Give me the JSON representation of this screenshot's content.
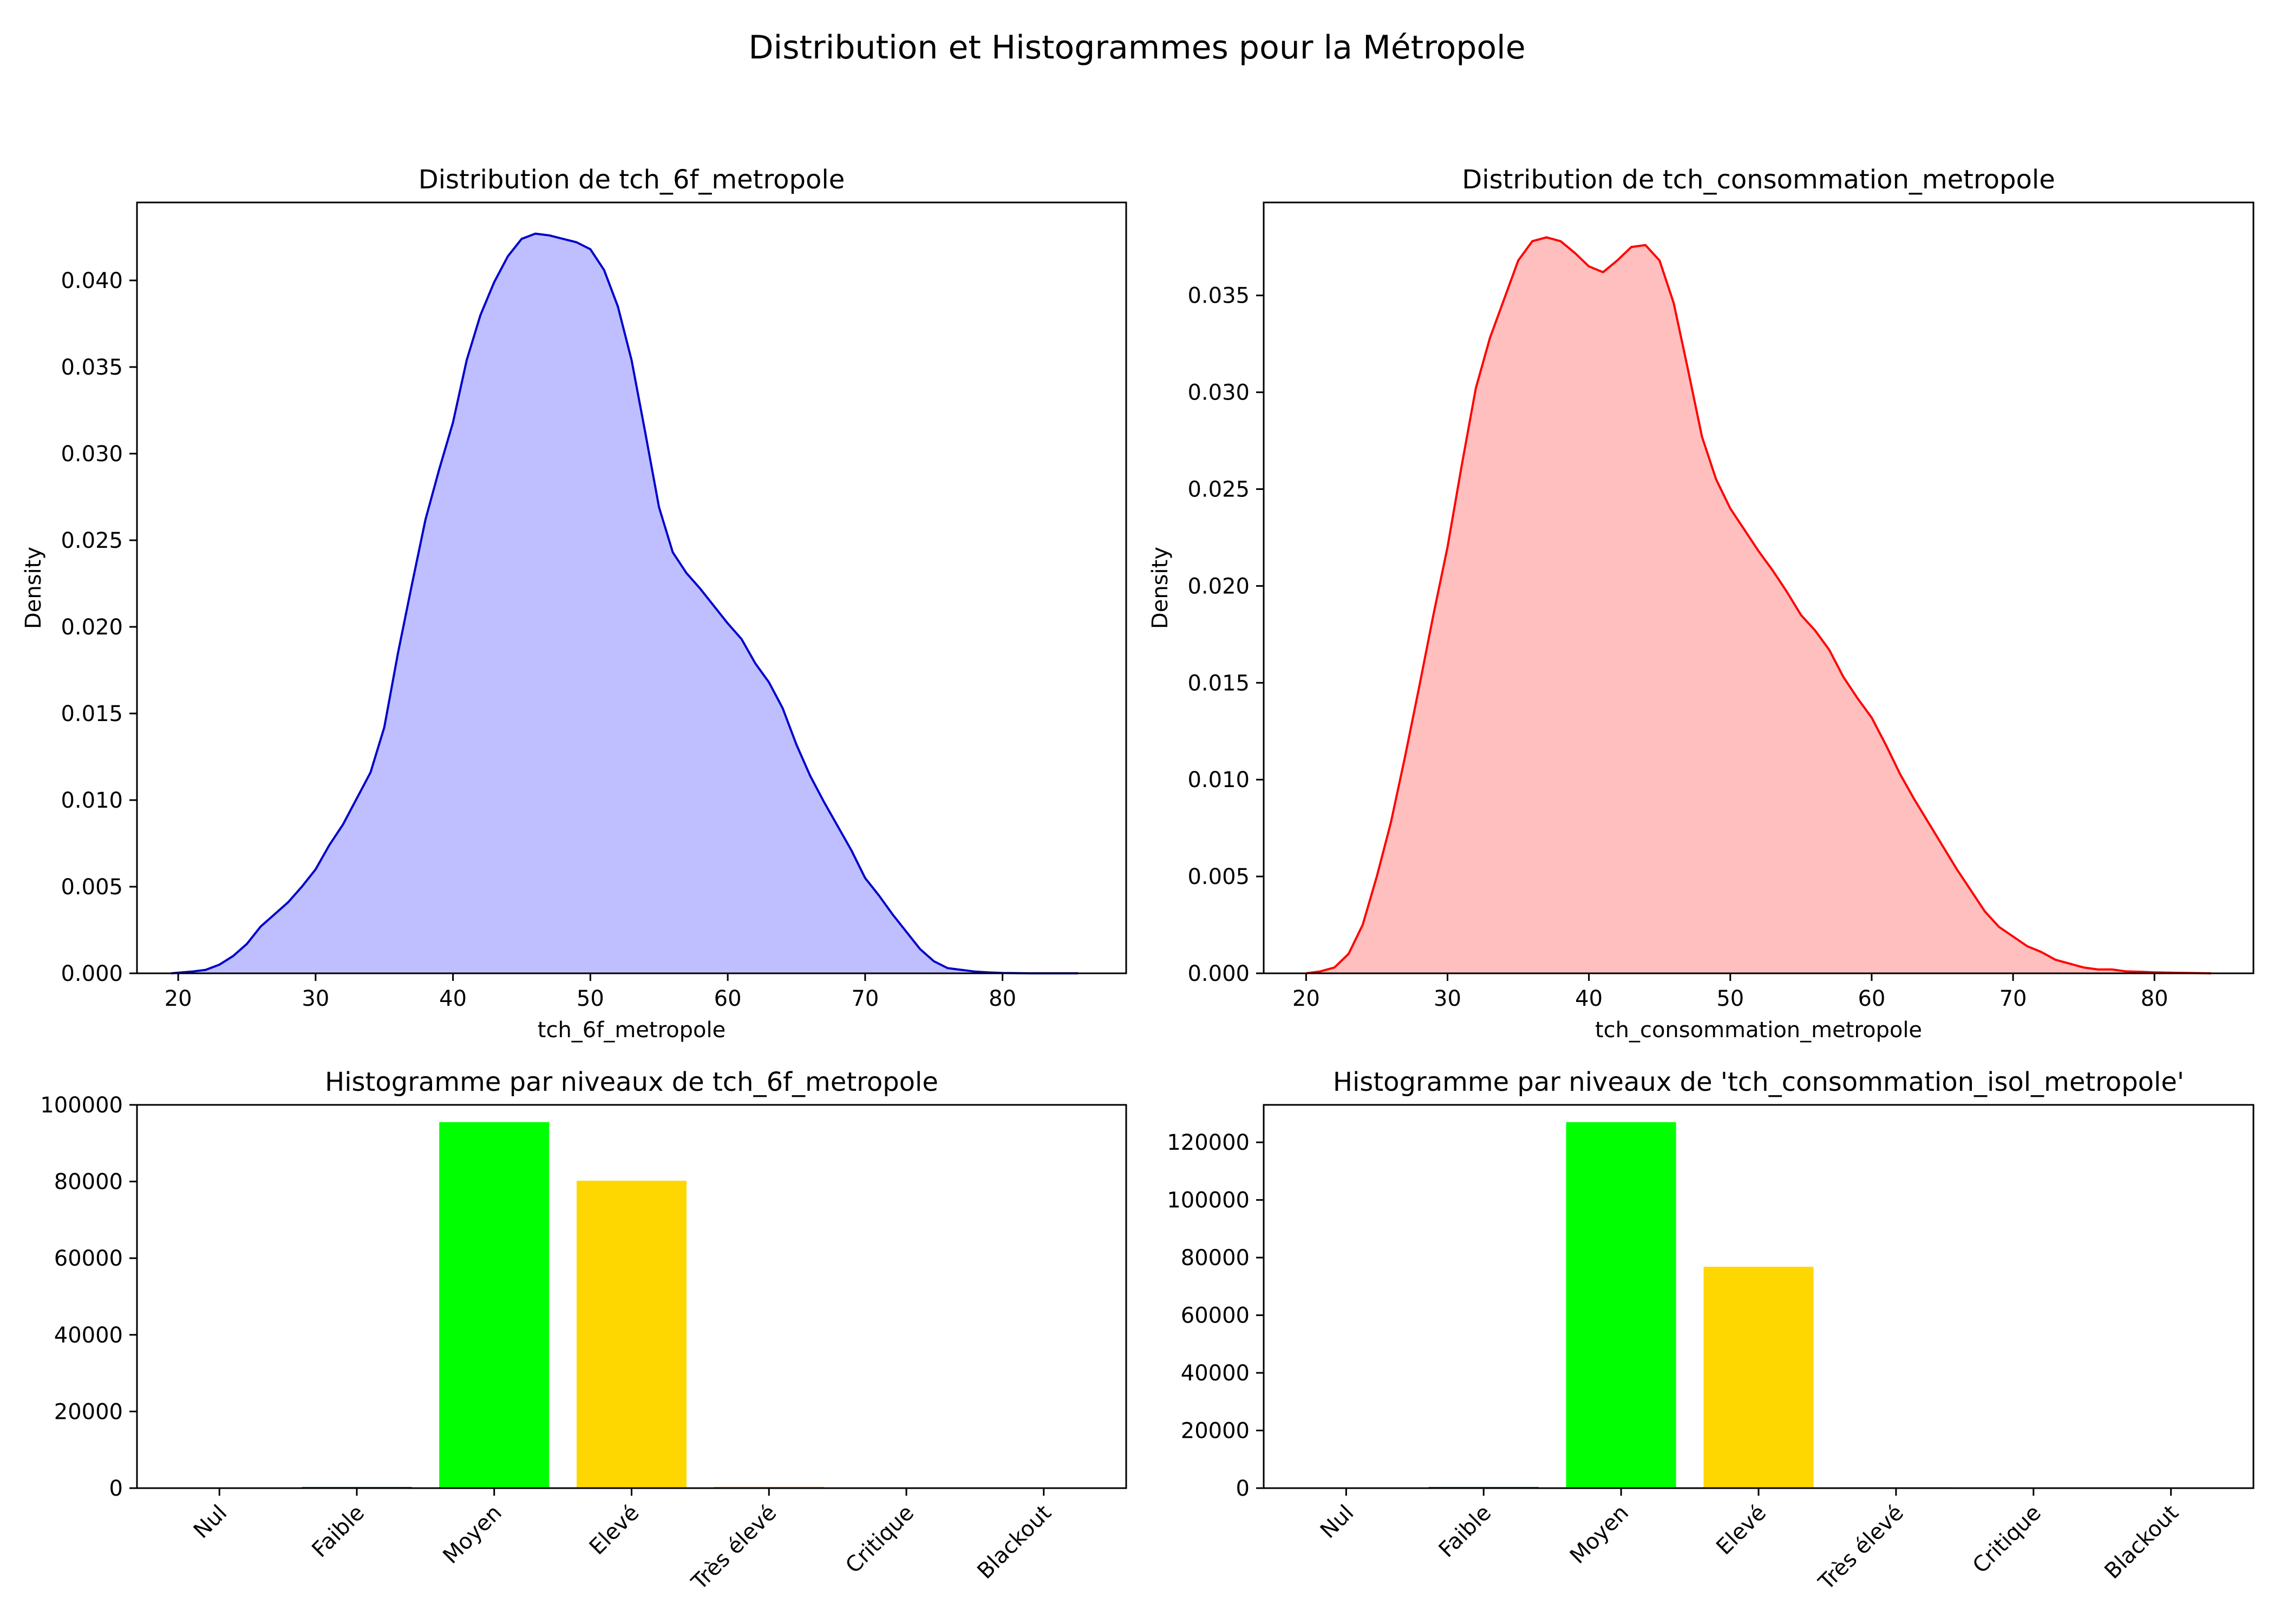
{
  "figure": {
    "title": "Distribution et Histogrammes pour la Métropole"
  },
  "chart_data": [
    {
      "type": "area",
      "title": "Distribution de tch_6f_metropole",
      "xlabel": "tch_6f_metropole",
      "ylabel": "Density",
      "xlim": [
        17,
        89
      ],
      "ylim": [
        0,
        0.0445
      ],
      "xticks": [
        20,
        30,
        40,
        50,
        60,
        70,
        80
      ],
      "yticks": [
        0,
        0.005,
        0.01,
        0.015,
        0.02,
        0.025,
        0.03,
        0.035,
        0.04
      ],
      "ytick_decimals": 3,
      "line_color": "#0000cc",
      "fill_color": "#bfbfff",
      "x": [
        19.5,
        21,
        22,
        23,
        24,
        25,
        26,
        27,
        28,
        29,
        30,
        31,
        32,
        33,
        34,
        35,
        36,
        37,
        38,
        39,
        40,
        41,
        42,
        43,
        44,
        45,
        46,
        47,
        48,
        49,
        50,
        51,
        52,
        53,
        54,
        55,
        56,
        57,
        58,
        59,
        60,
        61,
        62,
        63,
        64,
        65,
        66,
        67,
        68,
        69,
        70,
        71,
        72,
        73,
        74,
        75,
        76,
        77,
        78,
        79,
        80,
        82,
        85.5
      ],
      "y": [
        0.0,
        0.0001,
        0.0002,
        0.0005,
        0.001,
        0.0017,
        0.0027,
        0.0034,
        0.0041,
        0.005,
        0.006,
        0.0074,
        0.0086,
        0.0101,
        0.0116,
        0.0142,
        0.0185,
        0.0224,
        0.0262,
        0.0291,
        0.0318,
        0.0354,
        0.038,
        0.0399,
        0.0414,
        0.0424,
        0.0427,
        0.0426,
        0.0424,
        0.0422,
        0.0418,
        0.0406,
        0.0385,
        0.0354,
        0.0312,
        0.0269,
        0.0243,
        0.0231,
        0.0222,
        0.0212,
        0.0202,
        0.0193,
        0.0179,
        0.0168,
        0.0153,
        0.0132,
        0.0114,
        0.0099,
        0.0085,
        0.0071,
        0.0055,
        0.0045,
        0.0034,
        0.0024,
        0.0014,
        0.0007,
        0.0003,
        0.0002,
        0.0001,
        5e-05,
        2e-05,
        0.0,
        0.0
      ]
    },
    {
      "type": "area",
      "title": "Distribution de tch_consommation_metropole",
      "xlabel": "tch_consommation_metropole",
      "ylabel": "Density",
      "xlim": [
        17,
        87
      ],
      "ylim": [
        0,
        0.0398
      ],
      "xticks": [
        20,
        30,
        40,
        50,
        60,
        70,
        80
      ],
      "yticks": [
        0,
        0.005,
        0.01,
        0.015,
        0.02,
        0.025,
        0.03,
        0.035
      ],
      "ytick_decimals": 3,
      "line_color": "#ff0000",
      "fill_color": "#ffbfbf",
      "x": [
        20,
        21,
        22,
        23,
        24,
        25,
        26,
        27,
        28,
        29,
        30,
        31,
        32,
        33,
        34,
        35,
        36,
        37,
        38,
        39,
        40,
        41,
        42,
        43,
        44,
        45,
        46,
        47,
        48,
        49,
        50,
        51,
        52,
        53,
        54,
        55,
        56,
        57,
        58,
        59,
        60,
        61,
        62,
        63,
        64,
        65,
        66,
        67,
        68,
        69,
        70,
        71,
        72,
        73,
        74,
        75,
        76,
        77,
        78,
        79,
        80,
        82,
        84
      ],
      "y": [
        0.0,
        0.0001,
        0.0003,
        0.001,
        0.0025,
        0.005,
        0.0078,
        0.0112,
        0.0148,
        0.0185,
        0.022,
        0.0262,
        0.0302,
        0.0328,
        0.0348,
        0.0368,
        0.0378,
        0.038,
        0.0378,
        0.0372,
        0.0365,
        0.0362,
        0.0368,
        0.0375,
        0.0376,
        0.0368,
        0.0346,
        0.0312,
        0.0277,
        0.0255,
        0.024,
        0.0229,
        0.0218,
        0.0208,
        0.0197,
        0.0185,
        0.0177,
        0.0167,
        0.0153,
        0.0142,
        0.0132,
        0.0118,
        0.0103,
        0.009,
        0.0078,
        0.0066,
        0.0054,
        0.0043,
        0.0032,
        0.0024,
        0.0019,
        0.0014,
        0.0011,
        0.0007,
        0.0005,
        0.0003,
        0.0002,
        0.0002,
        0.0001,
        8e-05,
        5e-05,
        2e-05,
        0.0
      ]
    },
    {
      "type": "bar",
      "title": "Histogramme par niveaux de tch_6f_metropole",
      "categories": [
        "Nul",
        "Faible",
        "Moyen",
        "Elevé",
        "Très élevé",
        "Critique",
        "Blackout"
      ],
      "values": [
        0,
        300,
        95500,
        80200,
        300,
        0,
        0
      ],
      "colors": [
        "#808080",
        "#006400",
        "#00ff00",
        "#ffd700",
        "#ff8c00",
        "#ff0000",
        "#000000"
      ],
      "ylim": [
        0,
        100000
      ],
      "yticks": [
        0,
        20000,
        40000,
        60000,
        80000,
        100000
      ],
      "xlabel": "",
      "ylabel": ""
    },
    {
      "type": "bar",
      "title": "Histogramme par niveaux de 'tch_consommation_isol_metropole'",
      "categories": [
        "Nul",
        "Faible",
        "Moyen",
        "Elevé",
        "Très élevé",
        "Critique",
        "Blackout"
      ],
      "values": [
        0,
        400,
        127000,
        76800,
        300,
        0,
        0
      ],
      "colors": [
        "#808080",
        "#006400",
        "#00ff00",
        "#ffd700",
        "#ff8c00",
        "#ff0000",
        "#000000"
      ],
      "ylim": [
        0,
        133000
      ],
      "yticks": [
        0,
        20000,
        40000,
        60000,
        80000,
        100000,
        120000
      ],
      "xlabel": "",
      "ylabel": ""
    }
  ]
}
